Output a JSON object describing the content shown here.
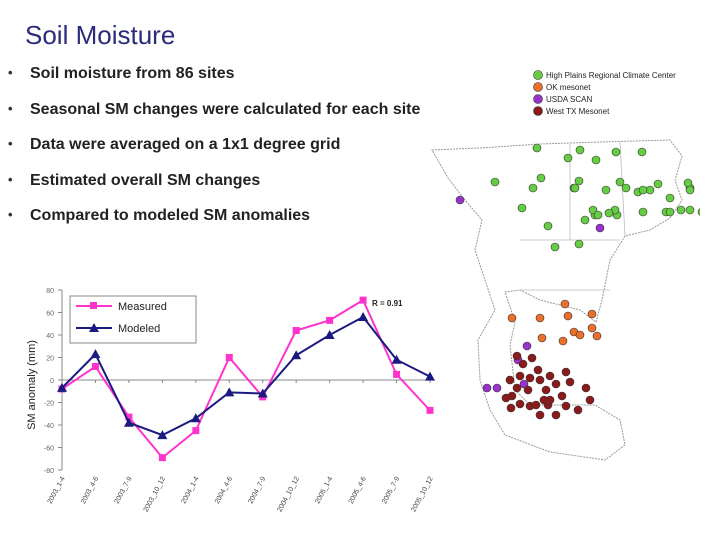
{
  "slide": {
    "title": "Soil Moisture",
    "bullets": [
      "Soil moisture from 86 sites",
      "Seasonal SM changes were calculated for each site",
      "Data were averaged on a 1x1 degree grid",
      "Estimated overall SM changes",
      "Compared to modeled SM anomalies"
    ]
  },
  "chart_data": {
    "type": "line",
    "ylabel": "SM anomaly (mm)",
    "ylim": [
      -80,
      80
    ],
    "yticks": [
      "80",
      "60",
      "40",
      "20",
      "0",
      "-20",
      "-40",
      "-60",
      "-80"
    ],
    "categories": [
      "2003_1-4",
      "2003_4-6",
      "2003_7-9",
      "2003_10_12",
      "2004_1-4",
      "2004_4-6",
      "2004_7-9",
      "2004_10_12",
      "2005_1-4",
      "2005_4-6",
      "2005_7-9",
      "2005_10_12"
    ],
    "annotation": "R = 0.91",
    "grid": false,
    "legend_position": "top-left",
    "series": [
      {
        "name": "Measured",
        "color": "#ff33cc",
        "marker": "square",
        "values": [
          -8,
          12,
          -33,
          -69,
          -45,
          20,
          -15,
          44,
          53,
          71,
          5,
          -27
        ]
      },
      {
        "name": "Modeled",
        "color": "#1a1a80",
        "marker": "triangle",
        "values": [
          -7,
          23,
          -38,
          -49,
          -34,
          -11,
          -12,
          22,
          40,
          56,
          18,
          3
        ]
      }
    ]
  },
  "map": {
    "legend": [
      {
        "label": "High Plains Regional Climate Center",
        "color": "#66cc44"
      },
      {
        "label": "OK mesonet",
        "color": "#e8702a"
      },
      {
        "label": "USDA SCAN",
        "color": "#9933cc"
      },
      {
        "label": "West TX Mesonet",
        "color": "#8b1a1a"
      }
    ]
  }
}
